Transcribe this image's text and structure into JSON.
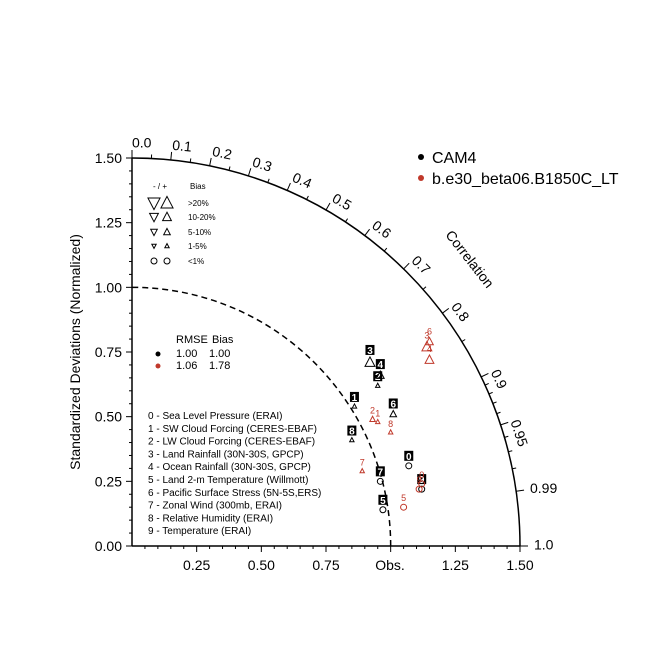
{
  "chart_data": {
    "type": "taylor",
    "ylabel": "Standardized Deviations (Normalized)",
    "arc_label": "Correlation",
    "obs_label": "Obs.",
    "sd_max": 1.5,
    "left_ticks": [
      "0.00",
      "0.25",
      "0.50",
      "0.75",
      "1.00",
      "1.25",
      "1.50"
    ],
    "bottom_ticks": [
      "0.25",
      "0.50",
      "0.75",
      "1.25",
      "1.50"
    ],
    "corr_ticks": [
      "0.0",
      "0.1",
      "0.2",
      "0.3",
      "0.4",
      "0.5",
      "0.6",
      "0.7",
      "0.8",
      "0.9",
      "0.95",
      "0.99",
      "1.0"
    ],
    "colors": {
      "CAM4": "#000000",
      "beta": "#c0392b"
    },
    "cases": [
      {
        "name": "CAM4",
        "color": "#000000"
      },
      {
        "name": "b.e30_beta06.B1850C_LT",
        "color": "#c0392b"
      }
    ],
    "bias_legend": {
      "header_sign": "- / +",
      "header_bias": "Bias",
      "rows": [
        ">20%",
        "10-20%",
        "5-10%",
        "1-5%",
        "<1%"
      ]
    },
    "rmse_legend": {
      "header_rmse": "RMSE",
      "header_bias": "Bias",
      "rows": [
        {
          "rmse": "1.00",
          "bias": "1.00",
          "color": "#000000"
        },
        {
          "rmse": "1.06",
          "bias": "1.78",
          "color": "#c0392b"
        }
      ]
    },
    "variables": [
      "0 - Sea Level Pressure (ERAI)",
      "1 - SW Cloud Forcing (CERES-EBAF)",
      "2 - LW Cloud Forcing (CERES-EBAF)",
      "3 - Land Rainfall (30N-30S, GPCP)",
      "4 - Ocean Rainfall (30N-30S, GPCP)",
      "5 - Land 2-m Temperature (Willmott)",
      "6 - Pacific Surface Stress (5N-5S,ERS)",
      "7 - Zonal Wind (300mb, ERAI)",
      "8 - Relative Humidity (ERAI)",
      "9 - Temperature (ERAI)"
    ],
    "series": [
      {
        "name": "CAM4",
        "color": "#000000",
        "points": [
          {
            "label": "0",
            "x": 1.07,
            "y": 0.31,
            "marker": "circle",
            "size": 5
          },
          {
            "label": "1",
            "x": 0.86,
            "y": 0.54,
            "marker": "up",
            "size": 4
          },
          {
            "label": "2",
            "x": 0.95,
            "y": 0.62,
            "marker": "up",
            "size": 4
          },
          {
            "label": "3",
            "x": 0.92,
            "y": 0.71,
            "marker": "up",
            "size": 9
          },
          {
            "label": "4",
            "x": 0.96,
            "y": 0.66,
            "marker": "up",
            "size": 7
          },
          {
            "label": "5",
            "x": 0.97,
            "y": 0.14,
            "marker": "circle",
            "size": 5
          },
          {
            "label": "6",
            "x": 1.01,
            "y": 0.51,
            "marker": "up",
            "size": 6
          },
          {
            "label": "7",
            "x": 0.96,
            "y": 0.25,
            "marker": "circle",
            "size": 5
          },
          {
            "label": "8",
            "x": 0.85,
            "y": 0.41,
            "marker": "up",
            "size": 4
          },
          {
            "label": "9",
            "x": 1.12,
            "y": 0.22,
            "marker": "circle",
            "size": 5
          }
        ]
      },
      {
        "name": "b.e30_beta06.B1850C_LT",
        "color": "#c0392b",
        "points": [
          {
            "label": "0",
            "x": 1.12,
            "y": 0.24,
            "marker": "circle",
            "size": 5
          },
          {
            "label": "1",
            "x": 0.95,
            "y": 0.48,
            "marker": "up",
            "size": 4
          },
          {
            "label": "2",
            "x": 0.93,
            "y": 0.49,
            "marker": "up",
            "size": 5
          },
          {
            "label": "3",
            "x": 1.14,
            "y": 0.77,
            "marker": "up",
            "size": 9
          },
          {
            "label": "4",
            "x": 1.15,
            "y": 0.72,
            "marker": "up",
            "size": 8
          },
          {
            "label": "5",
            "x": 1.05,
            "y": 0.15,
            "marker": "circle",
            "size": 5
          },
          {
            "label": "6",
            "x": 1.15,
            "y": 0.79,
            "marker": "up",
            "size": 7
          },
          {
            "label": "7",
            "x": 0.89,
            "y": 0.29,
            "marker": "up",
            "size": 4
          },
          {
            "label": "8",
            "x": 1.0,
            "y": 0.44,
            "marker": "up",
            "size": 4
          },
          {
            "label": "9",
            "x": 1.11,
            "y": 0.22,
            "marker": "circle",
            "size": 5
          }
        ]
      }
    ]
  }
}
